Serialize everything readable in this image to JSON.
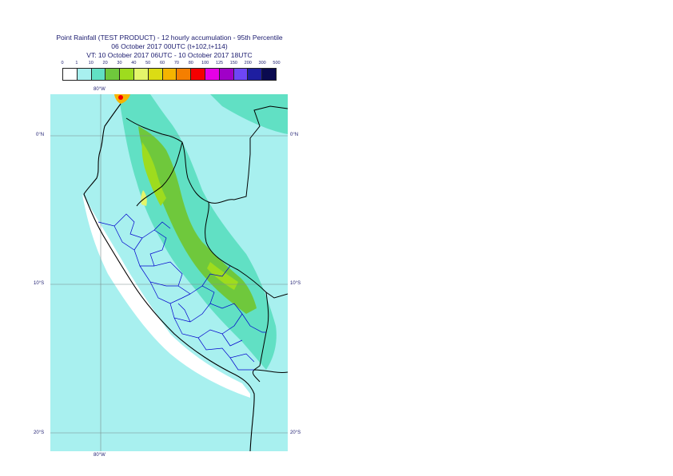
{
  "header": {
    "title": "Point Rainfall (TEST PRODUCT) - 12 hourly accumulation - 95th Percentile",
    "base_time": "06 October 2017 00UTC (t+102,t+114)",
    "valid_time": "VT: 10 October 2017 06UTC - 10 October 2017 18UTC"
  },
  "legend": {
    "ticks": [
      "0",
      "1",
      "10",
      "20",
      "30",
      "40",
      "50",
      "60",
      "70",
      "80",
      "100",
      "125",
      "150",
      "200",
      "300",
      "500"
    ],
    "colors": [
      "#ffffff",
      "#a8f0ef",
      "#61e0c4",
      "#6fc83c",
      "#9edc1e",
      "#e4f56a",
      "#dbdc14",
      "#f5b400",
      "#f57f00",
      "#f50000",
      "#e600e6",
      "#a000c8",
      "#6e46f5",
      "#1e1ea0",
      "#0a0a50"
    ]
  },
  "map": {
    "colors": {
      "sea": "#a8f0ef",
      "band10": "#61e0c4",
      "band20": "#6fc83c",
      "band30": "#9edc1e",
      "band40": "#e4f56a",
      "band80": "#f50000",
      "band60": "#f5b400",
      "coast": "#000000",
      "province": "#0000cc",
      "grid": "#7a8a8a",
      "coastal_dry": "#ffffff"
    },
    "labels": {
      "lon_top": "80°W",
      "lon_bottom": "80°W",
      "lat_0_left": "0°N",
      "lat_0_right": "0°N",
      "lat_10_left": "10°S",
      "lat_10_right": "10°S",
      "lat_20_left": "20°S",
      "lat_20_right": "20°S"
    }
  }
}
